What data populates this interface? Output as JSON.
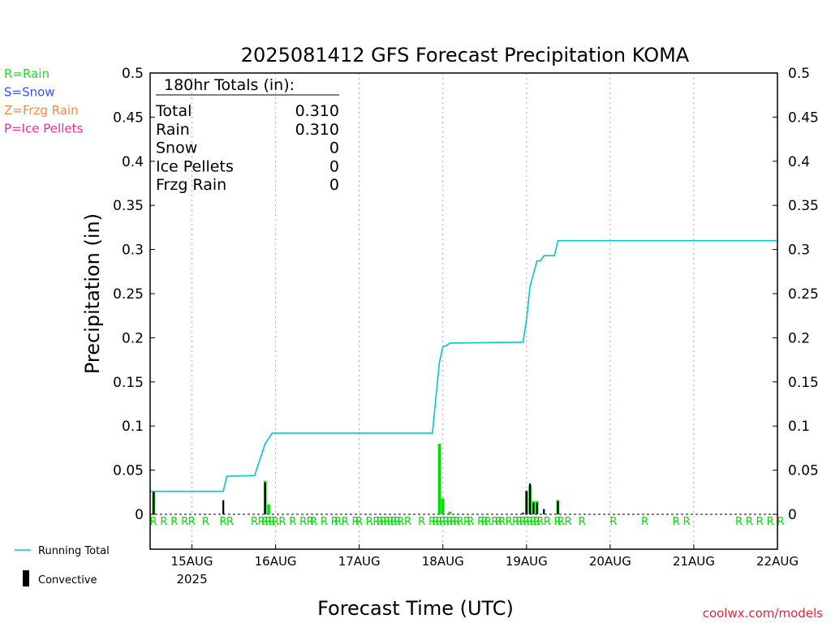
{
  "chart_data": {
    "type": "bar",
    "title": "2025081412 GFS Forecast Precipitation KOMA",
    "xlabel": "Forecast Time (UTC)",
    "ylabel": "Precipitation (in)",
    "ylim": [
      0,
      0.5
    ],
    "xlim": [
      "2025-08-14 12:00",
      "2025-08-22 00:00"
    ],
    "y_ticks": [
      "0",
      "0.05",
      "0.1",
      "0.15",
      "0.2",
      "0.25",
      "0.3",
      "0.35",
      "0.4",
      "0.45",
      "0.5"
    ],
    "x_ticks": [
      {
        "t": "2025-08-15 00:00",
        "label": "15AUG",
        "sub": "2025"
      },
      {
        "t": "2025-08-16 00:00",
        "label": "16AUG"
      },
      {
        "t": "2025-08-17 00:00",
        "label": "17AUG"
      },
      {
        "t": "2025-08-18 00:00",
        "label": "18AUG"
      },
      {
        "t": "2025-08-19 00:00",
        "label": "19AUG"
      },
      {
        "t": "2025-08-20 00:00",
        "label": "20AUG"
      },
      {
        "t": "2025-08-21 00:00",
        "label": "21AUG"
      },
      {
        "t": "2025-08-22 00:00",
        "label": "22AUG"
      }
    ],
    "grid": true,
    "series": [
      {
        "name": "Rain",
        "color": "#00dd00",
        "kind": "bar",
        "points": [
          [
            "2025-08-14 13:00",
            0.026
          ],
          [
            "2025-08-15 21:00",
            0.038
          ],
          [
            "2025-08-15 22:00",
            0.011
          ],
          [
            "2025-08-17 23:00",
            0.08
          ],
          [
            "2025-08-18 00:00",
            0.018
          ],
          [
            "2025-08-18 02:00",
            0.003
          ],
          [
            "2025-08-19 00:00",
            0.027
          ],
          [
            "2025-08-19 01:00",
            0.033
          ],
          [
            "2025-08-19 02:00",
            0.015
          ],
          [
            "2025-08-19 03:00",
            0.015
          ],
          [
            "2025-08-19 09:00",
            0.016
          ]
        ]
      },
      {
        "name": "Convective",
        "color": "#000000",
        "kind": "bar",
        "points": [
          [
            "2025-08-14 13:00",
            0.026
          ],
          [
            "2025-08-15 09:00",
            0.016
          ],
          [
            "2025-08-15 21:00",
            0.036
          ],
          [
            "2025-08-18 23:00",
            0.002
          ],
          [
            "2025-08-19 00:00",
            0.026
          ],
          [
            "2025-08-19 01:00",
            0.035
          ],
          [
            "2025-08-19 02:00",
            0.013
          ],
          [
            "2025-08-19 03:00",
            0.013
          ],
          [
            "2025-08-19 05:00",
            0.006
          ],
          [
            "2025-08-19 09:00",
            0.015
          ]
        ]
      },
      {
        "name": "Running Total",
        "color": "#00c8c8",
        "kind": "line",
        "points": [
          [
            "2025-08-14 12:00",
            0.026
          ],
          [
            "2025-08-15 09:00",
            0.026
          ],
          [
            "2025-08-15 10:00",
            0.043
          ],
          [
            "2025-08-15 18:00",
            0.044
          ],
          [
            "2025-08-15 21:00",
            0.08
          ],
          [
            "2025-08-15 23:00",
            0.092
          ],
          [
            "2025-08-17 21:00",
            0.092
          ],
          [
            "2025-08-17 23:00",
            0.172
          ],
          [
            "2025-08-18 00:00",
            0.19
          ],
          [
            "2025-08-18 01:00",
            0.191
          ],
          [
            "2025-08-18 02:00",
            0.194
          ],
          [
            "2025-08-18 23:00",
            0.195
          ],
          [
            "2025-08-19 00:00",
            0.22
          ],
          [
            "2025-08-19 01:00",
            0.258
          ],
          [
            "2025-08-19 03:00",
            0.287
          ],
          [
            "2025-08-19 04:00",
            0.287
          ],
          [
            "2025-08-19 05:00",
            0.293
          ],
          [
            "2025-08-19 08:00",
            0.293
          ],
          [
            "2025-08-19 09:00",
            0.31
          ],
          [
            "2025-08-22 00:00",
            0.31
          ]
        ]
      }
    ],
    "type_codes": {
      "label": "R",
      "color": "#00dd00",
      "times": [
        "2025-08-14 12:00",
        "2025-08-14 15:00",
        "2025-08-14 18:00",
        "2025-08-14 21:00",
        "2025-08-14 23:00",
        "2025-08-15 03:00",
        "2025-08-15 08:00",
        "2025-08-15 10:00",
        "2025-08-15 17:00",
        "2025-08-15 19:00",
        "2025-08-15 20:00",
        "2025-08-15 21:00",
        "2025-08-15 22:00",
        "2025-08-15 23:00",
        "2025-08-16 01:00",
        "2025-08-16 04:00",
        "2025-08-16 07:00",
        "2025-08-16 09:00",
        "2025-08-16 10:00",
        "2025-08-16 13:00",
        "2025-08-16 16:00",
        "2025-08-16 17:00",
        "2025-08-16 19:00",
        "2025-08-16 22:00",
        "2025-08-16 23:00",
        "2025-08-17 02:00",
        "2025-08-17 04:00",
        "2025-08-17 05:00",
        "2025-08-17 06:00",
        "2025-08-17 07:00",
        "2025-08-17 08:00",
        "2025-08-17 09:00",
        "2025-08-17 10:00",
        "2025-08-17 11:00",
        "2025-08-17 13:00",
        "2025-08-17 17:00",
        "2025-08-17 20:00",
        "2025-08-17 21:00",
        "2025-08-17 22:00",
        "2025-08-17 23:00",
        "2025-08-18 00:00",
        "2025-08-18 01:00",
        "2025-08-18 02:00",
        "2025-08-18 03:00",
        "2025-08-18 04:00",
        "2025-08-18 06:00",
        "2025-08-18 07:00",
        "2025-08-18 10:00",
        "2025-08-18 11:00",
        "2025-08-18 12:00",
        "2025-08-18 14:00",
        "2025-08-18 15:00",
        "2025-08-18 16:00",
        "2025-08-18 18:00",
        "2025-08-18 20:00",
        "2025-08-18 21:00",
        "2025-08-18 22:00",
        "2025-08-18 23:00",
        "2025-08-19 00:00",
        "2025-08-19 01:00",
        "2025-08-19 02:00",
        "2025-08-19 03:00",
        "2025-08-19 05:00",
        "2025-08-19 08:00",
        "2025-08-19 09:00",
        "2025-08-19 11:00",
        "2025-08-19 15:00",
        "2025-08-20 00:00",
        "2025-08-20 09:00",
        "2025-08-20 18:00",
        "2025-08-20 21:00",
        "2025-08-21 12:00",
        "2025-08-21 15:00",
        "2025-08-21 18:00",
        "2025-08-21 21:00",
        "2025-08-22 00:00"
      ]
    }
  },
  "totals_box": {
    "header": "180hr Totals (in):",
    "rows": [
      {
        "label": "Total",
        "value": "0.310"
      },
      {
        "label": "Rain",
        "value": "0.310"
      },
      {
        "label": "Snow",
        "value": "0"
      },
      {
        "label": "Ice Pellets",
        "value": "0"
      },
      {
        "label": "Frzg Rain",
        "value": "0"
      }
    ]
  },
  "type_legend": [
    {
      "text": "R=Rain",
      "color": "#22dd22"
    },
    {
      "text": "S=Snow",
      "color": "#3355ee"
    },
    {
      "text": "Z=Frzg Rain",
      "color": "#f08c3c"
    },
    {
      "text": "P=Ice Pellets",
      "color": "#f0289c"
    }
  ],
  "bottom_legend": {
    "running_total": "Running Total",
    "running_total_color": "#00c8c8",
    "convective": "Convective"
  },
  "credit": {
    "text": "coolwx.com/models",
    "color": "#e0283c"
  }
}
